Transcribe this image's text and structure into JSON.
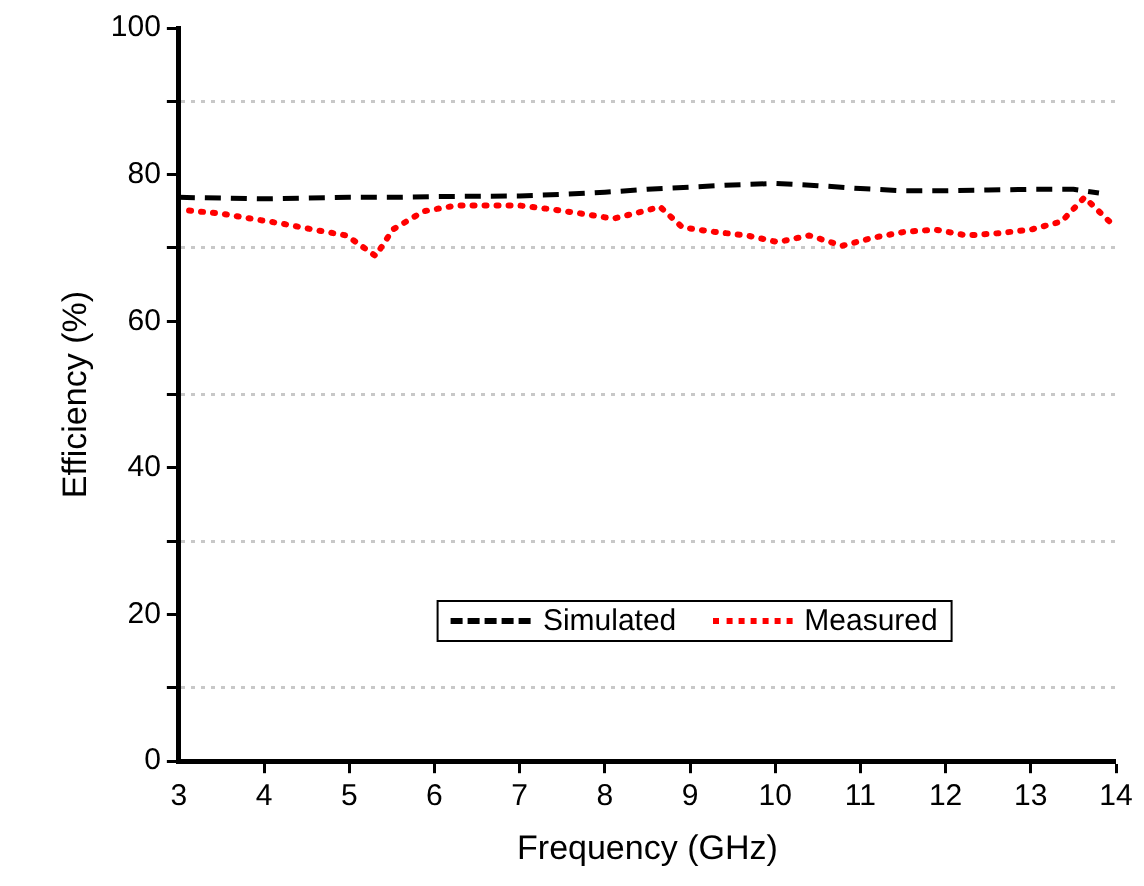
{
  "chart_data": {
    "type": "line",
    "xlabel": "Frequency (GHz)",
    "ylabel": "Efficiency (%)",
    "xlim": [
      3,
      14
    ],
    "xticks": [
      3,
      4,
      5,
      6,
      7,
      8,
      9,
      10,
      11,
      12,
      13,
      14
    ],
    "ylim": [
      0,
      100
    ],
    "yticks": [
      0,
      {
        "value": 10,
        "label": null
      },
      20,
      {
        "value": 30,
        "label": null
      },
      40,
      {
        "value": 50,
        "label": null
      },
      60,
      {
        "value": 70,
        "label": null
      },
      80,
      {
        "value": 90,
        "label": null
      },
      100
    ],
    "grid": "y",
    "legend": "bottom",
    "marker": "none",
    "series": [
      {
        "name": "Simulated",
        "color": "#000000",
        "line_style": "dashed",
        "x": [
          3,
          4,
          5,
          5.5,
          6,
          7,
          7.5,
          8,
          8.5,
          9,
          9.5,
          10,
          10.5,
          11,
          11.5,
          12,
          12.5,
          13,
          13.5,
          13.8
        ],
        "values": [
          76.9,
          76.7,
          76.9,
          76.9,
          77,
          77.1,
          77.3,
          77.6,
          78,
          78.3,
          78.6,
          78.8,
          78.5,
          78.1,
          77.8,
          77.8,
          77.9,
          78,
          78,
          77.5
        ]
      },
      {
        "name": "Measured",
        "color": "#ff0000",
        "line_style": "dotted",
        "x": [
          3.12,
          3.49,
          3.85,
          4.22,
          4.58,
          4.97,
          5.31,
          5.51,
          5.87,
          6.26,
          6.63,
          6.99,
          7.36,
          7.72,
          8.1,
          8.45,
          8.65,
          8.91,
          9.28,
          9.67,
          10.03,
          10.4,
          10.79,
          11.15,
          11.52,
          11.88,
          12.25,
          12.61,
          13,
          13.36,
          13.63,
          13.95
        ],
        "values": [
          75.1,
          74.7,
          74,
          73.3,
          72.5,
          71.7,
          68.9,
          72.5,
          75,
          75.8,
          75.8,
          75.8,
          75.3,
          74.7,
          74,
          75,
          75.6,
          72.8,
          72.2,
          71.7,
          70.8,
          71.7,
          70.3,
          71.4,
          72.2,
          72.5,
          71.7,
          72,
          72.5,
          73.6,
          76.9,
          73.3
        ]
      }
    ]
  }
}
